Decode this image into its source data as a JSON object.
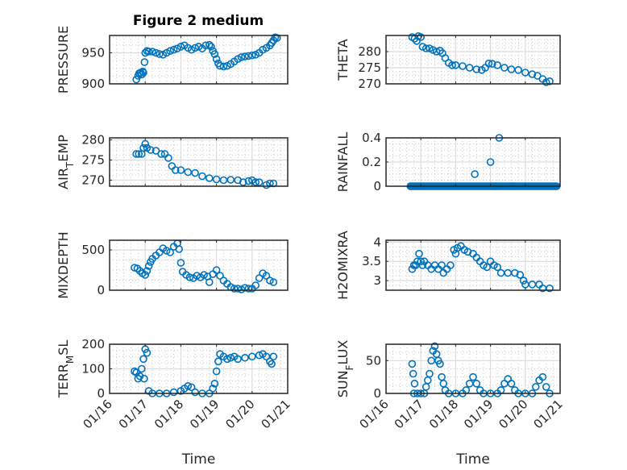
{
  "figure": {
    "title": "Figure 2 medium",
    "marker_color": "#0072BD",
    "marker": "circle-open"
  },
  "chart_data": [
    {
      "type": "scatter",
      "id": "pressure",
      "title": "Figure 2 medium",
      "xlabel": "",
      "ylabel": "PRESSURE",
      "xlim": [
        0,
        5
      ],
      "xticks": [
        "01/16",
        "01/17",
        "01/18",
        "01/19",
        "01/20",
        "01/21"
      ],
      "xtick_labels_shown": false,
      "ylim": [
        900,
        978
      ],
      "yticks": [
        900,
        950
      ],
      "grid": true,
      "points": [
        [
          0.75,
          907
        ],
        [
          0.8,
          913
        ],
        [
          0.83,
          917
        ],
        [
          0.87,
          918
        ],
        [
          0.9,
          915
        ],
        [
          0.93,
          920
        ],
        [
          0.95,
          918
        ],
        [
          0.98,
          935
        ],
        [
          1.0,
          950
        ],
        [
          1.05,
          953
        ],
        [
          1.1,
          952
        ],
        [
          1.2,
          952
        ],
        [
          1.3,
          950
        ],
        [
          1.4,
          948
        ],
        [
          1.5,
          947
        ],
        [
          1.6,
          950
        ],
        [
          1.7,
          953
        ],
        [
          1.8,
          955
        ],
        [
          1.9,
          957
        ],
        [
          2.0,
          960
        ],
        [
          2.1,
          962
        ],
        [
          2.2,
          958
        ],
        [
          2.3,
          955
        ],
        [
          2.4,
          958
        ],
        [
          2.5,
          960
        ],
        [
          2.6,
          957
        ],
        [
          2.7,
          962
        ],
        [
          2.8,
          963
        ],
        [
          2.85,
          960
        ],
        [
          2.9,
          953
        ],
        [
          2.95,
          948
        ],
        [
          3.0,
          940
        ],
        [
          3.05,
          933
        ],
        [
          3.1,
          929
        ],
        [
          3.2,
          928
        ],
        [
          3.3,
          929
        ],
        [
          3.4,
          932
        ],
        [
          3.5,
          936
        ],
        [
          3.6,
          940
        ],
        [
          3.7,
          943
        ],
        [
          3.8,
          944
        ],
        [
          3.9,
          945
        ],
        [
          4.0,
          946
        ],
        [
          4.1,
          947
        ],
        [
          4.2,
          950
        ],
        [
          4.3,
          955
        ],
        [
          4.4,
          958
        ],
        [
          4.5,
          962
        ],
        [
          4.55,
          966
        ],
        [
          4.6,
          970
        ],
        [
          4.65,
          975
        ],
        [
          4.7,
          974
        ]
      ]
    },
    {
      "type": "scatter",
      "id": "theta",
      "xlabel": "",
      "ylabel": "THETA",
      "xlim": [
        0,
        5
      ],
      "xticks": [
        "01/16",
        "01/17",
        "01/18",
        "01/19",
        "01/20",
        "01/21"
      ],
      "xtick_labels_shown": false,
      "ylim": [
        270,
        285
      ],
      "yticks": [
        270,
        275,
        280
      ],
      "grid": true,
      "points": [
        [
          0.75,
          284.5
        ],
        [
          0.82,
          284
        ],
        [
          0.88,
          283.3
        ],
        [
          0.93,
          284.8
        ],
        [
          1.0,
          284.5
        ],
        [
          1.05,
          281.5
        ],
        [
          1.15,
          281
        ],
        [
          1.25,
          281
        ],
        [
          1.35,
          280.5
        ],
        [
          1.45,
          280
        ],
        [
          1.55,
          280.3
        ],
        [
          1.62,
          279.5
        ],
        [
          1.7,
          278
        ],
        [
          1.8,
          276.5
        ],
        [
          1.9,
          275.8
        ],
        [
          2.0,
          275.8
        ],
        [
          2.2,
          275.5
        ],
        [
          2.4,
          275
        ],
        [
          2.6,
          274.5
        ],
        [
          2.75,
          274.3
        ],
        [
          2.85,
          275
        ],
        [
          2.95,
          276.3
        ],
        [
          3.05,
          276.2
        ],
        [
          3.2,
          275.8
        ],
        [
          3.4,
          275
        ],
        [
          3.6,
          274.5
        ],
        [
          3.8,
          274.3
        ],
        [
          4.0,
          273.5
        ],
        [
          4.2,
          273
        ],
        [
          4.35,
          272.5
        ],
        [
          4.5,
          271.5
        ],
        [
          4.6,
          270.5
        ],
        [
          4.7,
          270.8
        ]
      ]
    },
    {
      "type": "scatter",
      "id": "air_temp",
      "xlabel": "",
      "ylabel": "AIR_TEMP",
      "ylabel_rendered": "AIR_TEMP (subscript T)",
      "xlim": [
        0,
        5
      ],
      "xticks": [
        "01/16",
        "01/17",
        "01/18",
        "01/19",
        "01/20",
        "01/21"
      ],
      "xtick_labels_shown": false,
      "ylim": [
        268.5,
        280.5
      ],
      "yticks": [
        270,
        275,
        280
      ],
      "grid": true,
      "points": [
        [
          0.75,
          276.5
        ],
        [
          0.82,
          276.5
        ],
        [
          0.9,
          276.5
        ],
        [
          0.95,
          278
        ],
        [
          1.0,
          279
        ],
        [
          1.05,
          278
        ],
        [
          1.15,
          277.5
        ],
        [
          1.3,
          277.3
        ],
        [
          1.45,
          276.5
        ],
        [
          1.55,
          276.5
        ],
        [
          1.65,
          275.5
        ],
        [
          1.75,
          273.5
        ],
        [
          1.85,
          272.5
        ],
        [
          2.0,
          272.5
        ],
        [
          2.2,
          272
        ],
        [
          2.4,
          271.8
        ],
        [
          2.6,
          271
        ],
        [
          2.8,
          270.5
        ],
        [
          3.0,
          270.2
        ],
        [
          3.2,
          270
        ],
        [
          3.4,
          270.1
        ],
        [
          3.6,
          270
        ],
        [
          3.75,
          269.5
        ],
        [
          3.9,
          269.8
        ],
        [
          4.0,
          270
        ],
        [
          4.1,
          269.5
        ],
        [
          4.2,
          269.5
        ],
        [
          4.4,
          268.8
        ],
        [
          4.5,
          269.2
        ],
        [
          4.6,
          269.2
        ]
      ]
    },
    {
      "type": "scatter",
      "id": "rainfall",
      "xlabel": "",
      "ylabel": "RAINFALL",
      "xlim": [
        0,
        5
      ],
      "xticks": [
        "01/16",
        "01/17",
        "01/18",
        "01/19",
        "01/20",
        "01/21"
      ],
      "xtick_labels_shown": false,
      "ylim": [
        0,
        0.4
      ],
      "yticks": [
        0,
        0.2,
        0.4
      ],
      "grid": true,
      "points_zero_range": [
        0.7,
        4.9
      ],
      "points": [
        [
          2.55,
          0.1
        ],
        [
          3.0,
          0.2
        ],
        [
          3.25,
          0.4
        ],
        [
          3.15,
          0.0
        ]
      ]
    },
    {
      "type": "scatter",
      "id": "mixdepth",
      "xlabel": "",
      "ylabel": "MIXDEPTH",
      "xlim": [
        0,
        5
      ],
      "xticks": [
        "01/16",
        "01/17",
        "01/18",
        "01/19",
        "01/20",
        "01/21"
      ],
      "xtick_labels_shown": false,
      "ylim": [
        0,
        620
      ],
      "yticks": [
        0,
        500
      ],
      "grid": true,
      "points": [
        [
          0.7,
          280
        ],
        [
          0.78,
          270
        ],
        [
          0.85,
          240
        ],
        [
          0.92,
          210
        ],
        [
          1.0,
          190
        ],
        [
          1.05,
          240
        ],
        [
          1.1,
          300
        ],
        [
          1.15,
          350
        ],
        [
          1.2,
          390
        ],
        [
          1.3,
          430
        ],
        [
          1.4,
          470
        ],
        [
          1.5,
          520
        ],
        [
          1.6,
          490
        ],
        [
          1.7,
          470
        ],
        [
          1.8,
          540
        ],
        [
          1.9,
          580
        ],
        [
          1.95,
          510
        ],
        [
          2.0,
          340
        ],
        [
          2.05,
          230
        ],
        [
          2.15,
          190
        ],
        [
          2.25,
          160
        ],
        [
          2.35,
          150
        ],
        [
          2.45,
          180
        ],
        [
          2.55,
          160
        ],
        [
          2.65,
          190
        ],
        [
          2.75,
          170
        ],
        [
          2.8,
          100
        ],
        [
          2.9,
          200
        ],
        [
          3.0,
          250
        ],
        [
          3.1,
          180
        ],
        [
          3.2,
          120
        ],
        [
          3.3,
          80
        ],
        [
          3.4,
          40
        ],
        [
          3.5,
          20
        ],
        [
          3.6,
          20
        ],
        [
          3.7,
          10
        ],
        [
          3.8,
          30
        ],
        [
          3.9,
          20
        ],
        [
          4.0,
          20
        ],
        [
          4.1,
          60
        ],
        [
          4.2,
          150
        ],
        [
          4.3,
          210
        ],
        [
          4.4,
          180
        ],
        [
          4.5,
          120
        ],
        [
          4.6,
          100
        ]
      ]
    },
    {
      "type": "scatter",
      "id": "h2omixra",
      "xlabel": "",
      "ylabel": "H2OMIXRA",
      "xlim": [
        0,
        5
      ],
      "xticks": [
        "01/16",
        "01/17",
        "01/18",
        "01/19",
        "01/20",
        "01/21"
      ],
      "xtick_labels_shown": false,
      "ylim": [
        2.75,
        4.05
      ],
      "yticks": [
        3,
        3.5,
        4
      ],
      "grid": true,
      "points": [
        [
          0.75,
          3.3
        ],
        [
          0.8,
          3.4
        ],
        [
          0.85,
          3.4
        ],
        [
          0.9,
          3.5
        ],
        [
          0.95,
          3.7
        ],
        [
          1.0,
          3.5
        ],
        [
          1.05,
          3.4
        ],
        [
          1.1,
          3.5
        ],
        [
          1.2,
          3.4
        ],
        [
          1.3,
          3.3
        ],
        [
          1.4,
          3.4
        ],
        [
          1.5,
          3.3
        ],
        [
          1.6,
          3.4
        ],
        [
          1.65,
          3.2
        ],
        [
          1.75,
          3.3
        ],
        [
          1.85,
          3.4
        ],
        [
          1.95,
          3.8
        ],
        [
          2.0,
          3.7
        ],
        [
          2.05,
          3.85
        ],
        [
          2.15,
          3.9
        ],
        [
          2.25,
          3.8
        ],
        [
          2.35,
          3.75
        ],
        [
          2.5,
          3.7
        ],
        [
          2.6,
          3.6
        ],
        [
          2.7,
          3.5
        ],
        [
          2.8,
          3.4
        ],
        [
          2.9,
          3.35
        ],
        [
          3.0,
          3.5
        ],
        [
          3.1,
          3.4
        ],
        [
          3.2,
          3.35
        ],
        [
          3.3,
          3.2
        ],
        [
          3.5,
          3.2
        ],
        [
          3.7,
          3.2
        ],
        [
          3.85,
          3.15
        ],
        [
          3.95,
          3.0
        ],
        [
          4.0,
          2.9
        ],
        [
          4.2,
          2.9
        ],
        [
          4.4,
          2.9
        ],
        [
          4.5,
          2.8
        ],
        [
          4.7,
          2.8
        ]
      ]
    },
    {
      "type": "scatter",
      "id": "terr_msl",
      "xlabel": "Time",
      "ylabel": "TERR_MSL",
      "ylabel_rendered": "TERR_MSL (subscript M)",
      "xlim": [
        0,
        5
      ],
      "xticks": [
        "01/16",
        "01/17",
        "01/18",
        "01/19",
        "01/20",
        "01/21"
      ],
      "xtick_labels_shown": true,
      "ylim": [
        0,
        200
      ],
      "yticks": [
        0,
        100,
        200
      ],
      "grid": true,
      "points": [
        [
          0.7,
          90
        ],
        [
          0.75,
          85
        ],
        [
          0.8,
          60
        ],
        [
          0.85,
          70
        ],
        [
          0.9,
          100
        ],
        [
          0.95,
          140
        ],
        [
          1.0,
          180
        ],
        [
          1.05,
          165
        ],
        [
          0.97,
          60
        ],
        [
          1.1,
          10
        ],
        [
          1.2,
          0
        ],
        [
          1.4,
          0
        ],
        [
          1.6,
          0
        ],
        [
          1.8,
          5
        ],
        [
          2.0,
          10
        ],
        [
          2.1,
          20
        ],
        [
          2.2,
          30
        ],
        [
          2.3,
          25
        ],
        [
          2.4,
          5
        ],
        [
          2.6,
          0
        ],
        [
          2.8,
          0
        ],
        [
          2.9,
          20
        ],
        [
          2.95,
          40
        ],
        [
          3.0,
          90
        ],
        [
          3.05,
          130
        ],
        [
          3.1,
          160
        ],
        [
          3.2,
          150
        ],
        [
          3.3,
          140
        ],
        [
          3.4,
          145
        ],
        [
          3.5,
          150
        ],
        [
          3.6,
          140
        ],
        [
          3.8,
          145
        ],
        [
          4.0,
          150
        ],
        [
          4.2,
          155
        ],
        [
          4.3,
          160
        ],
        [
          4.4,
          150
        ],
        [
          4.5,
          130
        ],
        [
          4.55,
          120
        ],
        [
          4.6,
          150
        ]
      ]
    },
    {
      "type": "scatter",
      "id": "sun_flux",
      "xlabel": "Time",
      "ylabel": "SUN_FLUX",
      "ylabel_rendered": "SUN_FLUX (subscript F)",
      "xlim": [
        0,
        5
      ],
      "xticks": [
        "01/16",
        "01/17",
        "01/18",
        "01/19",
        "01/20",
        "01/21"
      ],
      "xtick_labels_shown": true,
      "ylim": [
        0,
        75
      ],
      "yticks": [
        0,
        50
      ],
      "grid": true,
      "points": [
        [
          0.75,
          45
        ],
        [
          0.78,
          30
        ],
        [
          0.82,
          15
        ],
        [
          0.8,
          0
        ],
        [
          0.9,
          0
        ],
        [
          1.0,
          0
        ],
        [
          1.1,
          0
        ],
        [
          1.15,
          10
        ],
        [
          1.2,
          20
        ],
        [
          1.25,
          30
        ],
        [
          1.3,
          50
        ],
        [
          1.35,
          65
        ],
        [
          1.4,
          72
        ],
        [
          1.45,
          60
        ],
        [
          1.5,
          50
        ],
        [
          1.55,
          45
        ],
        [
          1.6,
          25
        ],
        [
          1.65,
          15
        ],
        [
          1.7,
          5
        ],
        [
          1.8,
          0
        ],
        [
          2.0,
          0
        ],
        [
          2.2,
          0
        ],
        [
          2.3,
          5
        ],
        [
          2.4,
          15
        ],
        [
          2.5,
          25
        ],
        [
          2.6,
          15
        ],
        [
          2.7,
          5
        ],
        [
          2.8,
          0
        ],
        [
          3.0,
          0
        ],
        [
          3.2,
          0
        ],
        [
          3.3,
          5
        ],
        [
          3.4,
          15
        ],
        [
          3.5,
          22
        ],
        [
          3.6,
          15
        ],
        [
          3.7,
          5
        ],
        [
          3.8,
          0
        ],
        [
          4.0,
          0
        ],
        [
          4.2,
          0
        ],
        [
          4.3,
          10
        ],
        [
          4.4,
          20
        ],
        [
          4.5,
          25
        ],
        [
          4.6,
          10
        ],
        [
          4.7,
          0
        ]
      ]
    }
  ]
}
